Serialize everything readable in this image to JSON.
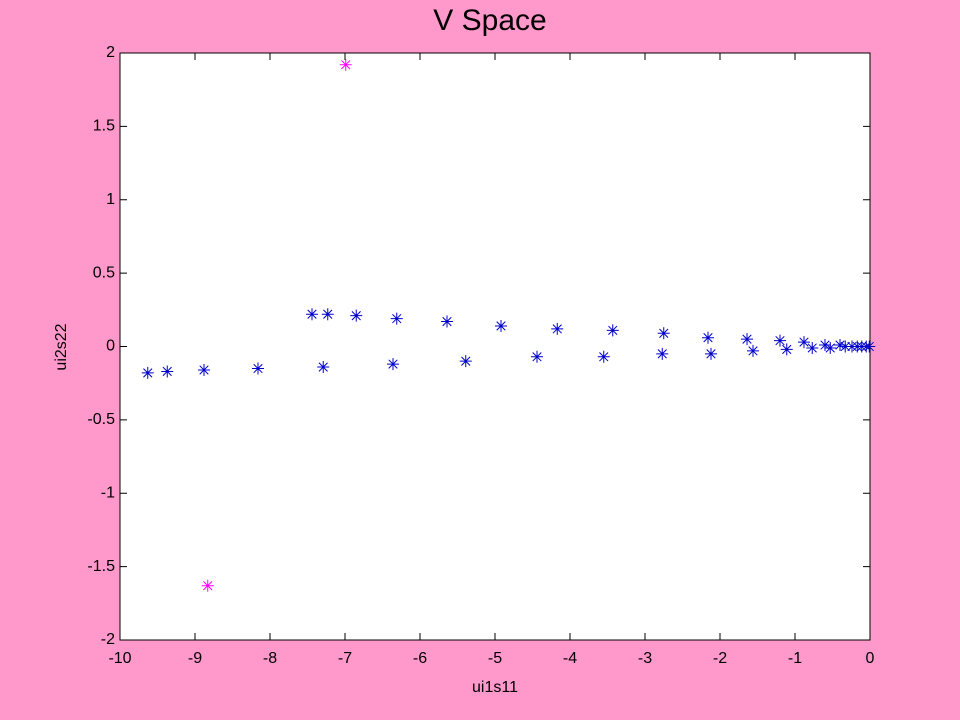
{
  "chart_data": {
    "type": "scatter",
    "title": "V Space",
    "xlabel": "ui1s11",
    "ylabel": "ui2s22",
    "xlim": [
      -10,
      0
    ],
    "ylim": [
      -2,
      2
    ],
    "xticks": [
      -10,
      -9,
      -8,
      -7,
      -6,
      -5,
      -4,
      -3,
      -2,
      -1,
      0
    ],
    "yticks": [
      -2,
      -1.5,
      -1,
      -0.5,
      0,
      0.5,
      1,
      1.5,
      2
    ],
    "series": [
      {
        "color": "#0000cc",
        "x": [
          -9.63,
          -9.37,
          -8.88,
          -8.16,
          -7.44,
          -7.23,
          -7.29,
          -6.85,
          -6.36,
          -6.31,
          -5.64,
          -5.39,
          -4.92,
          -4.44,
          -4.17,
          -3.55,
          -3.43,
          -2.77,
          -2.75,
          -2.16,
          -2.12,
          -1.64,
          -1.56,
          -1.2,
          -1.11,
          -0.88,
          -0.77,
          -0.6,
          -0.53,
          -0.4,
          -0.33,
          -0.24,
          -0.17,
          -0.11,
          -0.05,
          -0.01
        ],
        "y": [
          -0.18,
          -0.17,
          -0.16,
          -0.15,
          0.22,
          0.22,
          -0.14,
          0.21,
          -0.12,
          0.19,
          0.17,
          -0.1,
          0.14,
          -0.07,
          0.12,
          -0.07,
          0.11,
          -0.05,
          0.09,
          0.06,
          -0.05,
          0.05,
          -0.03,
          0.04,
          -0.02,
          0.03,
          -0.01,
          0.01,
          -0.01,
          0.01,
          0,
          0,
          0,
          0,
          0,
          0
        ]
      },
      {
        "color": "#ff00ff",
        "x": [
          -6.99,
          -8.83
        ],
        "y": [
          1.92,
          -1.63
        ]
      }
    ]
  }
}
